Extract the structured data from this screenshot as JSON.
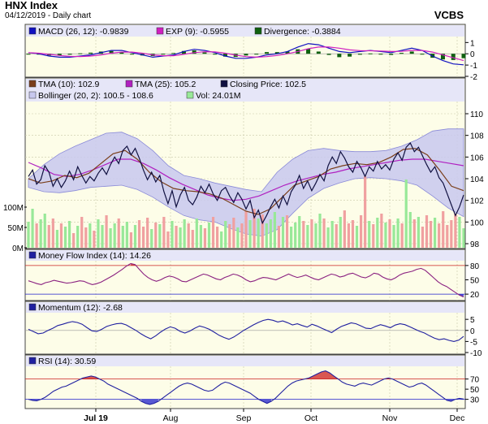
{
  "header": {
    "title": "HNX Index",
    "subtitle": "04/12/2019 - Daily chart",
    "brand": "VCBS"
  },
  "colors": {
    "panel_bg": "#fdfde8",
    "border": "#444444",
    "grid": "#c9c9a8",
    "close": "#101040",
    "tma10": "#7a3e1a",
    "tma25": "#b020c0",
    "bollinger": "#c8c8ee",
    "bollinger_edge": "#8a8ad8",
    "vol_up": "#98e898",
    "vol_down": "#f0a0a0",
    "macd": "#1010c0",
    "exp": "#d020c0",
    "divergence": "#106010",
    "indicator": "#2020a0",
    "band_red": "#cc2020",
    "band_blue": "#2020cc",
    "legend_bg": "#e6e6f8"
  },
  "chart_data": [
    {
      "type": "line",
      "id": "macd",
      "legend": [
        {
          "label": "MACD (26, 12): -0.9839",
          "color": "#1010c0"
        },
        {
          "label": "EXP (9): -0.5955",
          "color": "#d020c0"
        },
        {
          "label": "Divergence: -0.3884",
          "color": "#106010"
        }
      ],
      "yticks": [
        "1",
        "0",
        "-1",
        "-2"
      ],
      "ylim": [
        -2,
        1.6
      ],
      "series": [
        {
          "name": "MACD (26, 12)",
          "values": [
            0.1,
            0.0,
            -0.2,
            -0.3,
            -0.3,
            -0.2,
            -0.1,
            0.1,
            0.3,
            0.3,
            0.1,
            -0.1,
            -0.3,
            -0.2,
            -0.1,
            0.2,
            0.4,
            0.3,
            0.1,
            -0.2,
            -0.4,
            -0.4,
            -0.3,
            -0.1,
            0.0,
            0.2,
            0.6,
            0.9,
            0.8,
            0.5,
            0.2,
            0.1,
            0.2,
            0.3,
            0.2,
            0.1,
            0.3,
            0.5,
            0.3,
            -0.2,
            -0.6,
            -0.9,
            -0.98
          ]
        },
        {
          "name": "EXP (9)",
          "values": [
            0.1,
            0.05,
            -0.05,
            -0.15,
            -0.22,
            -0.24,
            -0.2,
            -0.1,
            0.05,
            0.15,
            0.15,
            0.05,
            -0.1,
            -0.17,
            -0.17,
            -0.05,
            0.1,
            0.18,
            0.17,
            0.05,
            -0.12,
            -0.25,
            -0.3,
            -0.25,
            -0.15,
            0.0,
            0.2,
            0.45,
            0.6,
            0.6,
            0.5,
            0.35,
            0.28,
            0.27,
            0.25,
            0.2,
            0.22,
            0.3,
            0.3,
            0.15,
            -0.1,
            -0.35,
            -0.6
          ]
        },
        {
          "name": "Divergence",
          "values": [
            0.0,
            -0.05,
            -0.15,
            -0.15,
            -0.08,
            0.04,
            0.1,
            0.2,
            0.25,
            0.15,
            -0.05,
            -0.15,
            -0.2,
            -0.03,
            0.07,
            0.25,
            0.3,
            0.12,
            -0.07,
            -0.25,
            -0.28,
            -0.15,
            0.0,
            0.15,
            0.15,
            0.2,
            0.4,
            0.45,
            0.2,
            -0.1,
            -0.3,
            -0.25,
            -0.08,
            0.03,
            -0.05,
            -0.1,
            0.08,
            0.2,
            0.0,
            -0.35,
            -0.5,
            -0.55,
            -0.39
          ]
        }
      ]
    },
    {
      "type": "line",
      "id": "price",
      "legend": [
        {
          "label": "TMA (10): 102.9",
          "color": "#7a3e1a"
        },
        {
          "label": "TMA (25): 105.2",
          "color": "#b020c0"
        },
        {
          "label": "Closing Price: 102.5",
          "color": "#101040"
        },
        {
          "label": "Bollinger (20, 2): 100.5 - 108.6",
          "color": "#c8c8ee"
        },
        {
          "label": "Vol: 24.01M",
          "color": "#98e898"
        }
      ],
      "yticks": [
        "110",
        "108",
        "106",
        "104",
        "102",
        "100",
        "98"
      ],
      "vol_ticks": [
        "100M",
        "50M",
        "0M"
      ],
      "ylim": [
        98,
        111.2
      ],
      "series": [
        {
          "name": "Closing Price",
          "values": [
            104.2,
            104.8,
            103.5,
            103.9,
            105.2,
            104.6,
            103.3,
            104.0,
            103.2,
            103.8,
            104.7,
            103.9,
            105.1,
            104.3,
            103.6,
            104.2,
            103.8,
            104.5,
            105.0,
            104.4,
            105.3,
            106.0,
            105.4,
            106.6,
            107.0,
            106.2,
            106.8,
            105.9,
            104.8,
            103.9,
            104.6,
            103.7,
            104.3,
            102.8,
            101.7,
            102.9,
            101.4,
            102.5,
            103.2,
            102.0,
            101.6,
            102.3,
            103.3,
            102.7,
            103.5,
            102.6,
            102.0,
            102.9,
            103.2,
            102.4,
            101.8,
            102.7,
            102.1,
            101.2,
            102.0,
            100.4,
            101.1,
            99.9,
            100.6,
            101.4,
            102.1,
            101.3,
            102.4,
            101.6,
            102.8,
            103.4,
            104.3,
            103.1,
            103.8,
            102.9,
            103.6,
            104.4,
            103.8,
            105.2,
            106.0,
            105.4,
            106.5,
            105.9,
            105.1,
            104.6,
            105.6,
            105.0,
            104.2,
            105.1,
            104.7,
            105.6,
            104.9,
            105.3,
            104.8,
            105.8,
            106.4,
            105.7,
            106.9,
            107.3,
            106.5,
            106.9,
            106.1,
            105.3,
            104.6,
            105.1,
            104.1,
            103.6,
            102.6,
            101.6,
            100.6,
            101.4,
            102.5
          ]
        },
        {
          "name": "TMA (10)",
          "values": [
            104.0,
            103.6,
            103.8,
            104.3,
            104.1,
            104.5,
            105.4,
            106.3,
            106.6,
            105.8,
            104.6,
            103.7,
            103.1,
            102.9,
            102.8,
            102.6,
            102.2,
            101.6,
            101.0,
            100.7,
            101.2,
            102.3,
            103.4,
            103.8,
            104.2,
            104.9,
            105.2,
            105.4,
            105.3,
            105.5,
            106.0,
            106.7,
            106.8,
            106.2,
            104.8,
            103.3,
            102.9
          ]
        },
        {
          "name": "TMA (25)",
          "values": [
            105.5,
            105.0,
            104.4,
            104.2,
            104.4,
            104.8,
            105.3,
            105.8,
            105.8,
            105.4,
            104.8,
            104.1,
            103.5,
            103.0,
            102.5,
            102.2,
            102.0,
            102.1,
            102.4,
            102.9,
            103.4,
            103.8,
            104.1,
            104.4,
            104.6,
            104.9,
            105.1,
            105.3,
            105.5,
            105.7,
            105.8,
            105.8,
            105.6,
            105.4,
            105.2
          ]
        },
        {
          "name": "Bollinger upper",
          "values": [
            104.0,
            105.3,
            106.3,
            107.0,
            107.6,
            108.2,
            108.3,
            107.7,
            106.6,
            105.2,
            104.3,
            104.0,
            103.6,
            103.3,
            103.0,
            102.8,
            104.6,
            105.8,
            106.6,
            106.8,
            106.6,
            106.5,
            106.5,
            106.6,
            107.0,
            107.6,
            108.4,
            108.6,
            108.6
          ]
        },
        {
          "name": "Bollinger lower",
          "values": [
            103.2,
            102.8,
            102.7,
            102.9,
            103.2,
            103.3,
            103.4,
            103.0,
            102.3,
            101.4,
            100.6,
            100.2,
            100.0,
            99.4,
            98.9,
            98.7,
            99.3,
            100.8,
            102.2,
            103.1,
            103.6,
            104.0,
            104.1,
            104.0,
            103.8,
            103.4,
            102.4,
            101.3,
            100.5
          ]
        }
      ],
      "volume": [
        32,
        48,
        30,
        35,
        42,
        28,
        36,
        22,
        30,
        26,
        33,
        18,
        27,
        38,
        25,
        30,
        21,
        35,
        28,
        40,
        24,
        30,
        36,
        27,
        32,
        19,
        28,
        34,
        26,
        37,
        23,
        31,
        29,
        38,
        20,
        33,
        27,
        25,
        35,
        30,
        22,
        36,
        28,
        24,
        31,
        38,
        26,
        20,
        33,
        29,
        37,
        25,
        30,
        45,
        34,
        48,
        36,
        41,
        30,
        35,
        44,
        27,
        38,
        40,
        26,
        31,
        39,
        33,
        28,
        35,
        30,
        42,
        36,
        25,
        33,
        29,
        38,
        46,
        30,
        34,
        27,
        40,
        88,
        33,
        29,
        37,
        42,
        31,
        35,
        28,
        36,
        30,
        84,
        44,
        35,
        38,
        26,
        40,
        33,
        37,
        30,
        45,
        28,
        34,
        42,
        38,
        24
      ]
    },
    {
      "type": "line",
      "id": "mfi",
      "legend": [
        {
          "label": "Money Flow Index (14): 14.26",
          "color": "#2020a0"
        }
      ],
      "yticks": [
        "80",
        "50",
        "20"
      ],
      "ylim": [
        10,
        90
      ],
      "bands": [
        80,
        20
      ],
      "values": [
        48,
        45,
        42,
        40,
        44,
        46,
        49,
        47,
        45,
        43,
        44,
        46,
        48,
        47,
        43,
        40,
        42,
        45,
        50,
        55,
        60,
        66,
        72,
        79,
        84,
        82,
        72,
        62,
        55,
        50,
        47,
        50,
        55,
        58,
        56,
        52,
        47,
        46,
        50,
        54,
        58,
        62,
        60,
        56,
        52,
        50,
        55,
        58,
        62,
        60,
        56,
        50,
        46,
        48,
        52,
        55,
        54,
        52,
        50,
        54,
        58,
        62,
        58,
        55,
        57,
        60,
        56,
        52,
        50,
        54,
        58,
        62,
        60,
        56,
        58,
        62,
        64,
        60,
        56,
        54,
        58,
        64,
        62,
        56,
        52,
        50,
        54,
        60,
        64,
        66,
        68,
        72,
        74,
        70,
        62,
        54,
        46,
        40,
        36,
        30,
        24,
        18,
        14
      ]
    },
    {
      "type": "line",
      "id": "momentum",
      "legend": [
        {
          "label": "Momentum (12): -2.68",
          "color": "#2020a0"
        }
      ],
      "yticks": [
        "5",
        "0",
        "-5",
        "-10"
      ],
      "ylim": [
        -10,
        8
      ],
      "values": [
        0.5,
        -0.5,
        -1.5,
        -1.2,
        0.0,
        1.0,
        2.2,
        2.8,
        3.5,
        4.0,
        3.6,
        2.8,
        1.2,
        -0.2,
        -0.5,
        0.5,
        1.8,
        2.5,
        3.0,
        3.2,
        2.5,
        1.2,
        0.0,
        -1.5,
        -2.8,
        -3.8,
        -2.5,
        -0.8,
        0.6,
        1.6,
        1.0,
        -0.4,
        -1.2,
        -0.3,
        1.0,
        2.0,
        1.4,
        0.5,
        -0.8,
        -2.2,
        -3.2,
        -4.0,
        -3.0,
        -1.5,
        0.0,
        1.2,
        2.5,
        3.6,
        4.5,
        5.0,
        4.6,
        3.8,
        4.3,
        3.5,
        2.5,
        3.0,
        2.2,
        1.5,
        2.8,
        2.0,
        1.0,
        0.0,
        -1.0,
        0.5,
        1.8,
        2.6,
        3.4,
        3.0,
        2.0,
        1.0,
        0.8,
        1.8,
        2.6,
        2.0,
        1.2,
        2.4,
        3.0,
        2.6,
        1.6,
        0.6,
        -0.4,
        -1.2,
        -2.4,
        -3.5,
        -4.2,
        -3.8,
        -4.5,
        -5.0,
        -4.4,
        -2.68
      ]
    },
    {
      "type": "line",
      "id": "rsi",
      "legend": [
        {
          "label": "RSI (14): 30.59",
          "color": "#2020a0"
        }
      ],
      "yticks": [
        "70",
        "50",
        "30"
      ],
      "ylim": [
        15,
        95
      ],
      "bands": [
        70,
        30
      ],
      "values": [
        30,
        28,
        27,
        30,
        34,
        40,
        46,
        50,
        54,
        56,
        60,
        64,
        68,
        72,
        74,
        76,
        74,
        70,
        66,
        60,
        56,
        52,
        48,
        44,
        40,
        36,
        32,
        26,
        22,
        20,
        22,
        26,
        32,
        38,
        44,
        50,
        56,
        60,
        62,
        60,
        56,
        52,
        48,
        46,
        48,
        54,
        60,
        64,
        62,
        58,
        54,
        50,
        46,
        42,
        36,
        30,
        26,
        22,
        26,
        32,
        40,
        48,
        56,
        62,
        66,
        68,
        70,
        72,
        76,
        80,
        84,
        86,
        82,
        76,
        70,
        64,
        60,
        58,
        56,
        60,
        62,
        60,
        58,
        62,
        66,
        70,
        72,
        70,
        66,
        62,
        58,
        54,
        56,
        60,
        62,
        58,
        52,
        46,
        40,
        34,
        28,
        26,
        30,
        32,
        30.59
      ]
    }
  ],
  "x_axis": {
    "labels": [
      "Jul 19",
      "Aug",
      "Sep",
      "Oct",
      "Nov",
      "Dec"
    ]
  }
}
